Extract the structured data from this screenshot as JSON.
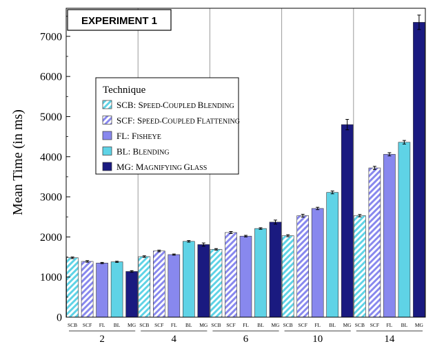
{
  "chart_data": {
    "type": "bar",
    "title": "EXPERIMENT 1",
    "xlabel": "",
    "ylabel": "Mean Time (in ms)",
    "ylim": [
      0,
      7700
    ],
    "yticks": [
      0,
      1000,
      2000,
      3000,
      4000,
      5000,
      6000,
      7000
    ],
    "categories": [
      "2",
      "4",
      "6",
      "10",
      "14"
    ],
    "grid": "vertical separators between groups",
    "legend": {
      "title": "Technique",
      "placement": "upper-left",
      "items": [
        {
          "abbr": "SCB",
          "sep": ": ",
          "first": "S",
          "rest": "PEED-",
          "first2": "C",
          "rest2": "OUPLED ",
          "first3": "B",
          "rest3": "LENDING",
          "full": "SCB: Speed-Coupled Blending"
        },
        {
          "abbr": "SCF",
          "sep": ": ",
          "first": "S",
          "rest": "PEED-",
          "first2": "C",
          "rest2": "OUPLED ",
          "first3": "F",
          "rest3": "LATTENING",
          "full": "SCF: Speed-Coupled Flattening"
        },
        {
          "abbr": "FL",
          "sep": ": ",
          "first": "F",
          "rest": "ISHEYE",
          "full": "FL: Fisheye"
        },
        {
          "abbr": "BL",
          "sep": ": ",
          "first": "B",
          "rest": "LENDING",
          "full": "BL: Blending"
        },
        {
          "abbr": "MG",
          "sep": ": ",
          "first": "M",
          "rest": "AGNIFYING ",
          "first2": "G",
          "rest2": "LASS",
          "full": "MG: Magnifying Glass"
        }
      ]
    },
    "series": [
      {
        "name": "SCB",
        "color": "#5fd3e6",
        "pattern": "hatch",
        "values": [
          1480,
          1510,
          1690,
          2030,
          2530
        ],
        "errors": [
          20,
          20,
          20,
          25,
          30
        ]
      },
      {
        "name": "SCF",
        "color": "#8888ee",
        "pattern": "hatch",
        "values": [
          1390,
          1650,
          2110,
          2530,
          3720
        ],
        "errors": [
          20,
          20,
          25,
          35,
          40
        ]
      },
      {
        "name": "FL",
        "color": "#8888ee",
        "pattern": "solid",
        "values": [
          1350,
          1560,
          2020,
          2710,
          4060
        ],
        "errors": [
          15,
          15,
          20,
          30,
          40
        ]
      },
      {
        "name": "BL",
        "color": "#5fd3e6",
        "pattern": "solid",
        "values": [
          1380,
          1890,
          2210,
          3110,
          4360
        ],
        "errors": [
          15,
          20,
          20,
          35,
          45
        ]
      },
      {
        "name": "MG",
        "color": "#1a1a80",
        "pattern": "solid",
        "values": [
          1140,
          1810,
          2370,
          4800,
          7350
        ],
        "errors": [
          20,
          40,
          50,
          130,
          180
        ]
      }
    ]
  }
}
